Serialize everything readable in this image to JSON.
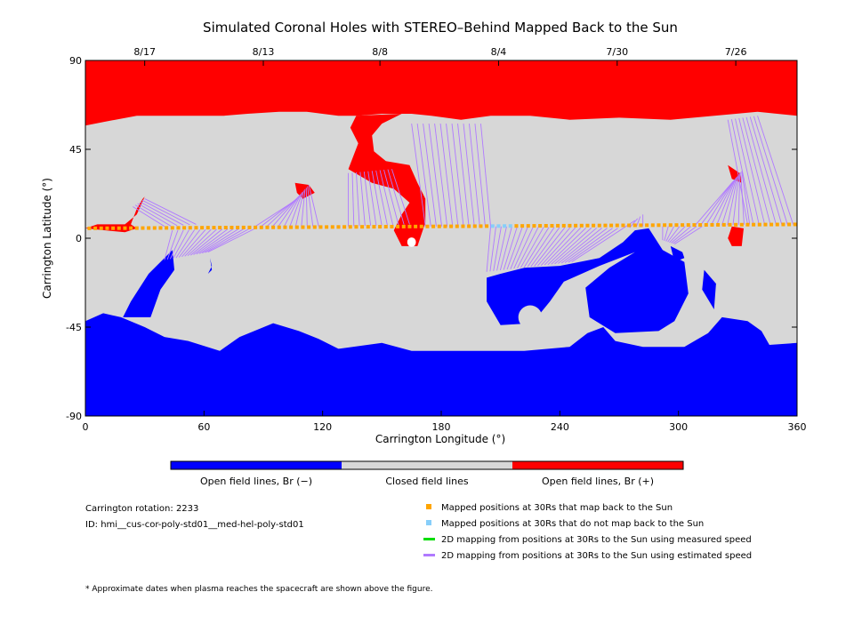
{
  "chart_data": {
    "type": "heatmap",
    "title": "Simulated Coronal Holes with STEREO–Behind Mapped Back to the Sun",
    "xlabel": "Carrington Longitude (°)",
    "ylabel": "Carrington Latitude (°)",
    "xlim": [
      0,
      360
    ],
    "ylim": [
      -90,
      90
    ],
    "xticks": [
      0,
      60,
      120,
      180,
      240,
      300,
      360
    ],
    "yticks": [
      -90,
      -45,
      0,
      45,
      90
    ],
    "top_dates": [
      {
        "label": "8/17",
        "lon": 30
      },
      {
        "label": "8/13",
        "lon": 90
      },
      {
        "label": "8/8",
        "lon": 149
      },
      {
        "label": "8/4",
        "lon": 209
      },
      {
        "label": "7/30",
        "lon": 269
      },
      {
        "label": "7/26",
        "lon": 329
      }
    ],
    "colorbar": [
      {
        "label": "Open field lines, Br (−)",
        "color": "#0000ff"
      },
      {
        "label": "Closed field lines",
        "color": "#d7d7d7"
      },
      {
        "label": "Open field lines, Br (+)",
        "color": "#ff0000"
      }
    ],
    "positive_regions": [
      [
        [
          0,
          90
        ],
        [
          360,
          90
        ],
        [
          360,
          62
        ],
        [
          340,
          64
        ],
        [
          318,
          62
        ],
        [
          296,
          60
        ],
        [
          270,
          61
        ],
        [
          245,
          60
        ],
        [
          225,
          62
        ],
        [
          205,
          62
        ],
        [
          190,
          60
        ],
        [
          175,
          62
        ],
        [
          165,
          63
        ],
        [
          150,
          63
        ],
        [
          138,
          62
        ],
        [
          128,
          62
        ],
        [
          112,
          64
        ],
        [
          98,
          64
        ],
        [
          82,
          63
        ],
        [
          70,
          62
        ],
        [
          58,
          62
        ],
        [
          42,
          62
        ],
        [
          26,
          62
        ],
        [
          10,
          59
        ],
        [
          0,
          57
        ]
      ],
      [
        [
          137,
          62
        ],
        [
          160,
          63
        ],
        [
          150,
          58
        ],
        [
          145,
          52
        ],
        [
          146,
          44
        ],
        [
          152,
          39
        ],
        [
          164,
          37
        ],
        [
          168,
          28
        ],
        [
          172,
          20
        ],
        [
          172,
          8
        ],
        [
          168,
          -4
        ],
        [
          160,
          -4
        ],
        [
          156,
          4
        ],
        [
          160,
          12
        ],
        [
          164,
          18
        ],
        [
          156,
          25
        ],
        [
          145,
          28
        ],
        [
          133,
          35
        ],
        [
          138,
          48
        ],
        [
          134,
          56
        ]
      ],
      [
        [
          6,
          7
        ],
        [
          20,
          7
        ],
        [
          26,
          12
        ],
        [
          30,
          21
        ],
        [
          29,
          20
        ],
        [
          26,
          15
        ],
        [
          23,
          7
        ],
        [
          26,
          5
        ],
        [
          20,
          3
        ],
        [
          10,
          4
        ],
        [
          0,
          5
        ]
      ],
      [
        [
          106,
          28
        ],
        [
          113,
          27
        ],
        [
          116,
          23
        ],
        [
          110,
          20
        ],
        [
          107,
          23
        ]
      ],
      [
        [
          325,
          37
        ],
        [
          331,
          33
        ],
        [
          332,
          28
        ],
        [
          327,
          30
        ]
      ],
      [
        [
          327,
          6
        ],
        [
          333,
          5
        ],
        [
          332,
          -4
        ],
        [
          327,
          -4
        ],
        [
          325,
          0
        ]
      ]
    ],
    "negative_regions": [
      [
        [
          0,
          -90
        ],
        [
          360,
          -90
        ],
        [
          360,
          -53
        ],
        [
          346,
          -54
        ],
        [
          342,
          -47
        ],
        [
          335,
          -42
        ],
        [
          322,
          -40
        ],
        [
          315,
          -48
        ],
        [
          303,
          -55
        ],
        [
          282,
          -55
        ],
        [
          268,
          -52
        ],
        [
          262,
          -45
        ],
        [
          254,
          -48
        ],
        [
          245,
          -55
        ],
        [
          222,
          -57
        ],
        [
          206,
          -57
        ],
        [
          182,
          -57
        ],
        [
          165,
          -57
        ],
        [
          150,
          -53
        ],
        [
          128,
          -56
        ],
        [
          118,
          -51
        ],
        [
          108,
          -47
        ],
        [
          95,
          -43
        ],
        [
          78,
          -50
        ],
        [
          68,
          -57
        ],
        [
          52,
          -52
        ],
        [
          40,
          -50
        ],
        [
          30,
          -45
        ],
        [
          18,
          -40
        ],
        [
          9,
          -38
        ],
        [
          0,
          -42
        ]
      ],
      [
        [
          19,
          -40
        ],
        [
          23,
          -32
        ],
        [
          32,
          -18
        ],
        [
          40,
          -10
        ],
        [
          44,
          -6
        ],
        [
          45,
          -16
        ],
        [
          38,
          -26
        ],
        [
          33,
          -40
        ]
      ],
      [
        [
          203,
          -20
        ],
        [
          210,
          -18
        ],
        [
          222,
          -15
        ],
        [
          240,
          -14
        ],
        [
          260,
          -10
        ],
        [
          272,
          -2
        ],
        [
          278,
          4
        ],
        [
          285,
          5
        ],
        [
          292,
          -6
        ],
        [
          303,
          -12
        ],
        [
          305,
          -28
        ],
        [
          298,
          -42
        ],
        [
          290,
          -47
        ],
        [
          268,
          -48
        ],
        [
          255,
          -40
        ],
        [
          253,
          -25
        ],
        [
          265,
          -15
        ],
        [
          278,
          -7
        ],
        [
          260,
          -14
        ],
        [
          242,
          -22
        ],
        [
          235,
          -32
        ],
        [
          226,
          -43
        ],
        [
          210,
          -44
        ],
        [
          203,
          -32
        ]
      ],
      [
        [
          296,
          -4
        ],
        [
          302,
          -7
        ],
        [
          303,
          -10
        ],
        [
          298,
          -12
        ]
      ],
      [
        [
          313,
          -16
        ],
        [
          319,
          -23
        ],
        [
          318,
          -36
        ],
        [
          312,
          -26
        ]
      ],
      [
        [
          63,
          -10
        ],
        [
          64,
          -14
        ],
        [
          62,
          -18
        ],
        [
          64,
          -16
        ]
      ]
    ],
    "negative_holes": [
      {
        "lon": 225,
        "lat": -40,
        "rx": 6,
        "ry": 6
      }
    ],
    "extra_spots": [
      {
        "sign": "+",
        "lon": 165,
        "lat": -2,
        "rx": 2.2,
        "ry": 2.4
      }
    ],
    "mapped_mapback": {
      "lon_start": 2,
      "lon_end": 359,
      "step": 3,
      "lat_start": 5,
      "lat_end": 7,
      "not_mapped_lon": [
        [
          206,
          215
        ]
      ]
    },
    "mapping_line_groups": [
      {
        "lon_from": 40,
        "lon_to": 56,
        "lat_from": 6,
        "lat_to": 7,
        "end_lon_from": 24,
        "end_lon_to": 30,
        "end_lat_from": 16,
        "end_lat_to": 20
      },
      {
        "lon_from": 44,
        "lon_to": 86,
        "lat_from": 4,
        "lat_to": 5,
        "end_lon_from": 40,
        "end_lon_to": 62,
        "end_lat_from": -11,
        "end_lat_to": -7
      },
      {
        "lon_from": 86,
        "lon_to": 118,
        "lat_from": 6,
        "lat_to": 6,
        "end_lon_from": 106,
        "end_lon_to": 113,
        "end_lat_from": 19,
        "end_lat_to": 27
      },
      {
        "lon_from": 133,
        "lon_to": 164,
        "lat_from": 6,
        "lat_to": 7,
        "end_lon_from": 133,
        "end_lon_to": 155,
        "end_lat_from": 33,
        "end_lat_to": 35
      },
      {
        "lon_from": 172,
        "lon_to": 205,
        "lat_from": 6,
        "lat_to": 6,
        "end_lon_from": 165,
        "end_lon_to": 200,
        "end_lat_from": 58,
        "end_lat_to": 58
      },
      {
        "lon_from": 205,
        "lon_to": 272,
        "lat_from": 6,
        "lat_to": 5,
        "end_lon_from": 203,
        "end_lon_to": 246,
        "end_lat_from": -17,
        "end_lat_to": -12
      },
      {
        "lon_from": 272,
        "lon_to": 282,
        "lat_from": 5,
        "lat_to": 6,
        "end_lon_from": 278,
        "end_lon_to": 282,
        "end_lat_from": 9,
        "end_lat_to": 12
      },
      {
        "lon_from": 292,
        "lon_to": 312,
        "lat_from": 6,
        "lat_to": 6,
        "end_lon_from": 292,
        "end_lon_to": 298,
        "end_lat_from": -1,
        "end_lat_to": -3
      },
      {
        "lon_from": 308,
        "lon_to": 336,
        "lat_from": 6,
        "lat_to": 7,
        "end_lon_from": 327,
        "end_lon_to": 332,
        "end_lat_from": 28,
        "end_lat_to": 34
      },
      {
        "lon_from": 335,
        "lon_to": 358,
        "lat_from": 7,
        "lat_to": 7,
        "end_lon_from": 325,
        "end_lon_to": 340,
        "end_lat_from": 60,
        "end_lat_to": 62
      }
    ]
  },
  "info": {
    "carrington_rotation": "Carrington rotation: 2233",
    "id": "ID: hmi__cus-cor-poly-std01__med-hel-poly-std01",
    "footnote": "* Approximate dates when plasma reaches the spacecraft are shown above the figure."
  },
  "legend": [
    {
      "label": "Mapped positions at 30Rs that map back to the Sun",
      "symbol": "square",
      "color": "#ffa500"
    },
    {
      "label": "Mapped positions at 30Rs that do not map back to the Sun",
      "symbol": "square",
      "color": "#87cefa"
    },
    {
      "label": "2D mapping from positions at 30Rs to the Sun using measured speed",
      "symbol": "line",
      "color": "#00dd00"
    },
    {
      "label": "2D mapping from positions at 30Rs to the Sun using estimated speed",
      "symbol": "line",
      "color": "#b07aff"
    }
  ],
  "colors": {
    "closed": "#d7d7d7",
    "negative": "#0000ff",
    "positive": "#ff0000",
    "mapback": "#ffa500",
    "no_mapback": "#87cefa",
    "est_line": "#b07aff"
  }
}
